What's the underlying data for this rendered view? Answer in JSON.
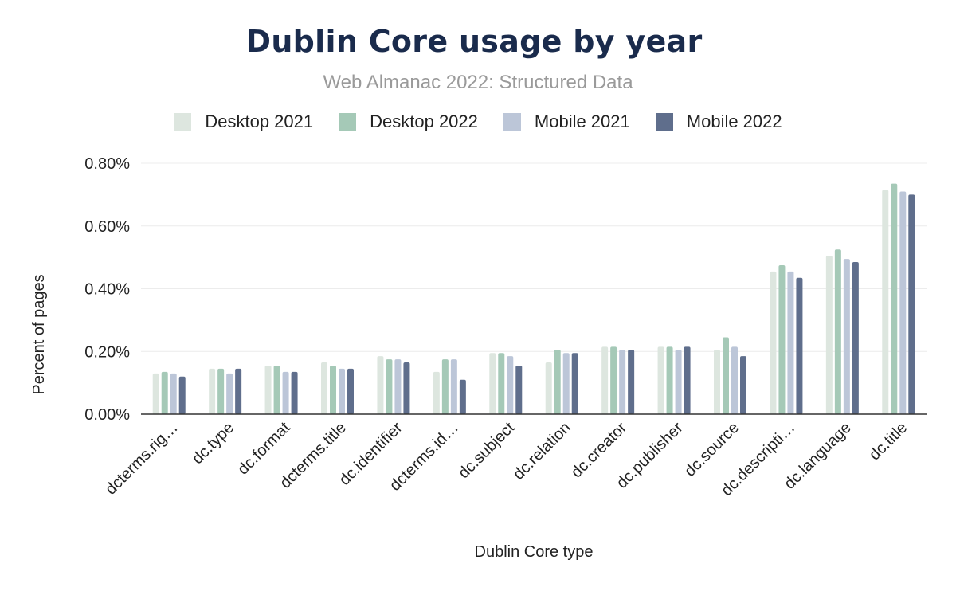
{
  "chart_data": {
    "type": "bar",
    "title": "Dublin Core usage by year",
    "subtitle": "Web Almanac 2022: Structured Data",
    "xlabel": "Dublin Core type",
    "ylabel": "Percent of pages",
    "ylim": [
      0,
      0.8
    ],
    "yticks": [
      "0.00%",
      "0.20%",
      "0.40%",
      "0.60%",
      "0.80%"
    ],
    "ytick_values": [
      0,
      0.2,
      0.4,
      0.6,
      0.8
    ],
    "grid": true,
    "legend_position": "top",
    "categories": [
      "dcterms.rig…",
      "dc.type",
      "dc.format",
      "dcterms.title",
      "dc.identifier",
      "dcterms.id…",
      "dc.subject",
      "dc.relation",
      "dc.creator",
      "dc.publisher",
      "dc.source",
      "dc.descripti…",
      "dc.language",
      "dc.title"
    ],
    "series": [
      {
        "name": "Desktop 2021",
        "color": "#dde6df",
        "values": [
          0.13,
          0.145,
          0.155,
          0.165,
          0.185,
          0.135,
          0.195,
          0.165,
          0.215,
          0.215,
          0.205,
          0.455,
          0.505,
          0.715
        ]
      },
      {
        "name": "Desktop 2022",
        "color": "#a5c9b7",
        "values": [
          0.135,
          0.145,
          0.155,
          0.155,
          0.175,
          0.175,
          0.195,
          0.205,
          0.215,
          0.215,
          0.245,
          0.475,
          0.525,
          0.735
        ]
      },
      {
        "name": "Mobile 2021",
        "color": "#bcc6d8",
        "values": [
          0.13,
          0.13,
          0.135,
          0.145,
          0.175,
          0.175,
          0.185,
          0.195,
          0.205,
          0.205,
          0.215,
          0.455,
          0.495,
          0.71
        ]
      },
      {
        "name": "Mobile 2022",
        "color": "#5f6e8c",
        "values": [
          0.12,
          0.145,
          0.135,
          0.145,
          0.165,
          0.11,
          0.155,
          0.195,
          0.205,
          0.215,
          0.185,
          0.435,
          0.485,
          0.7
        ]
      }
    ]
  }
}
